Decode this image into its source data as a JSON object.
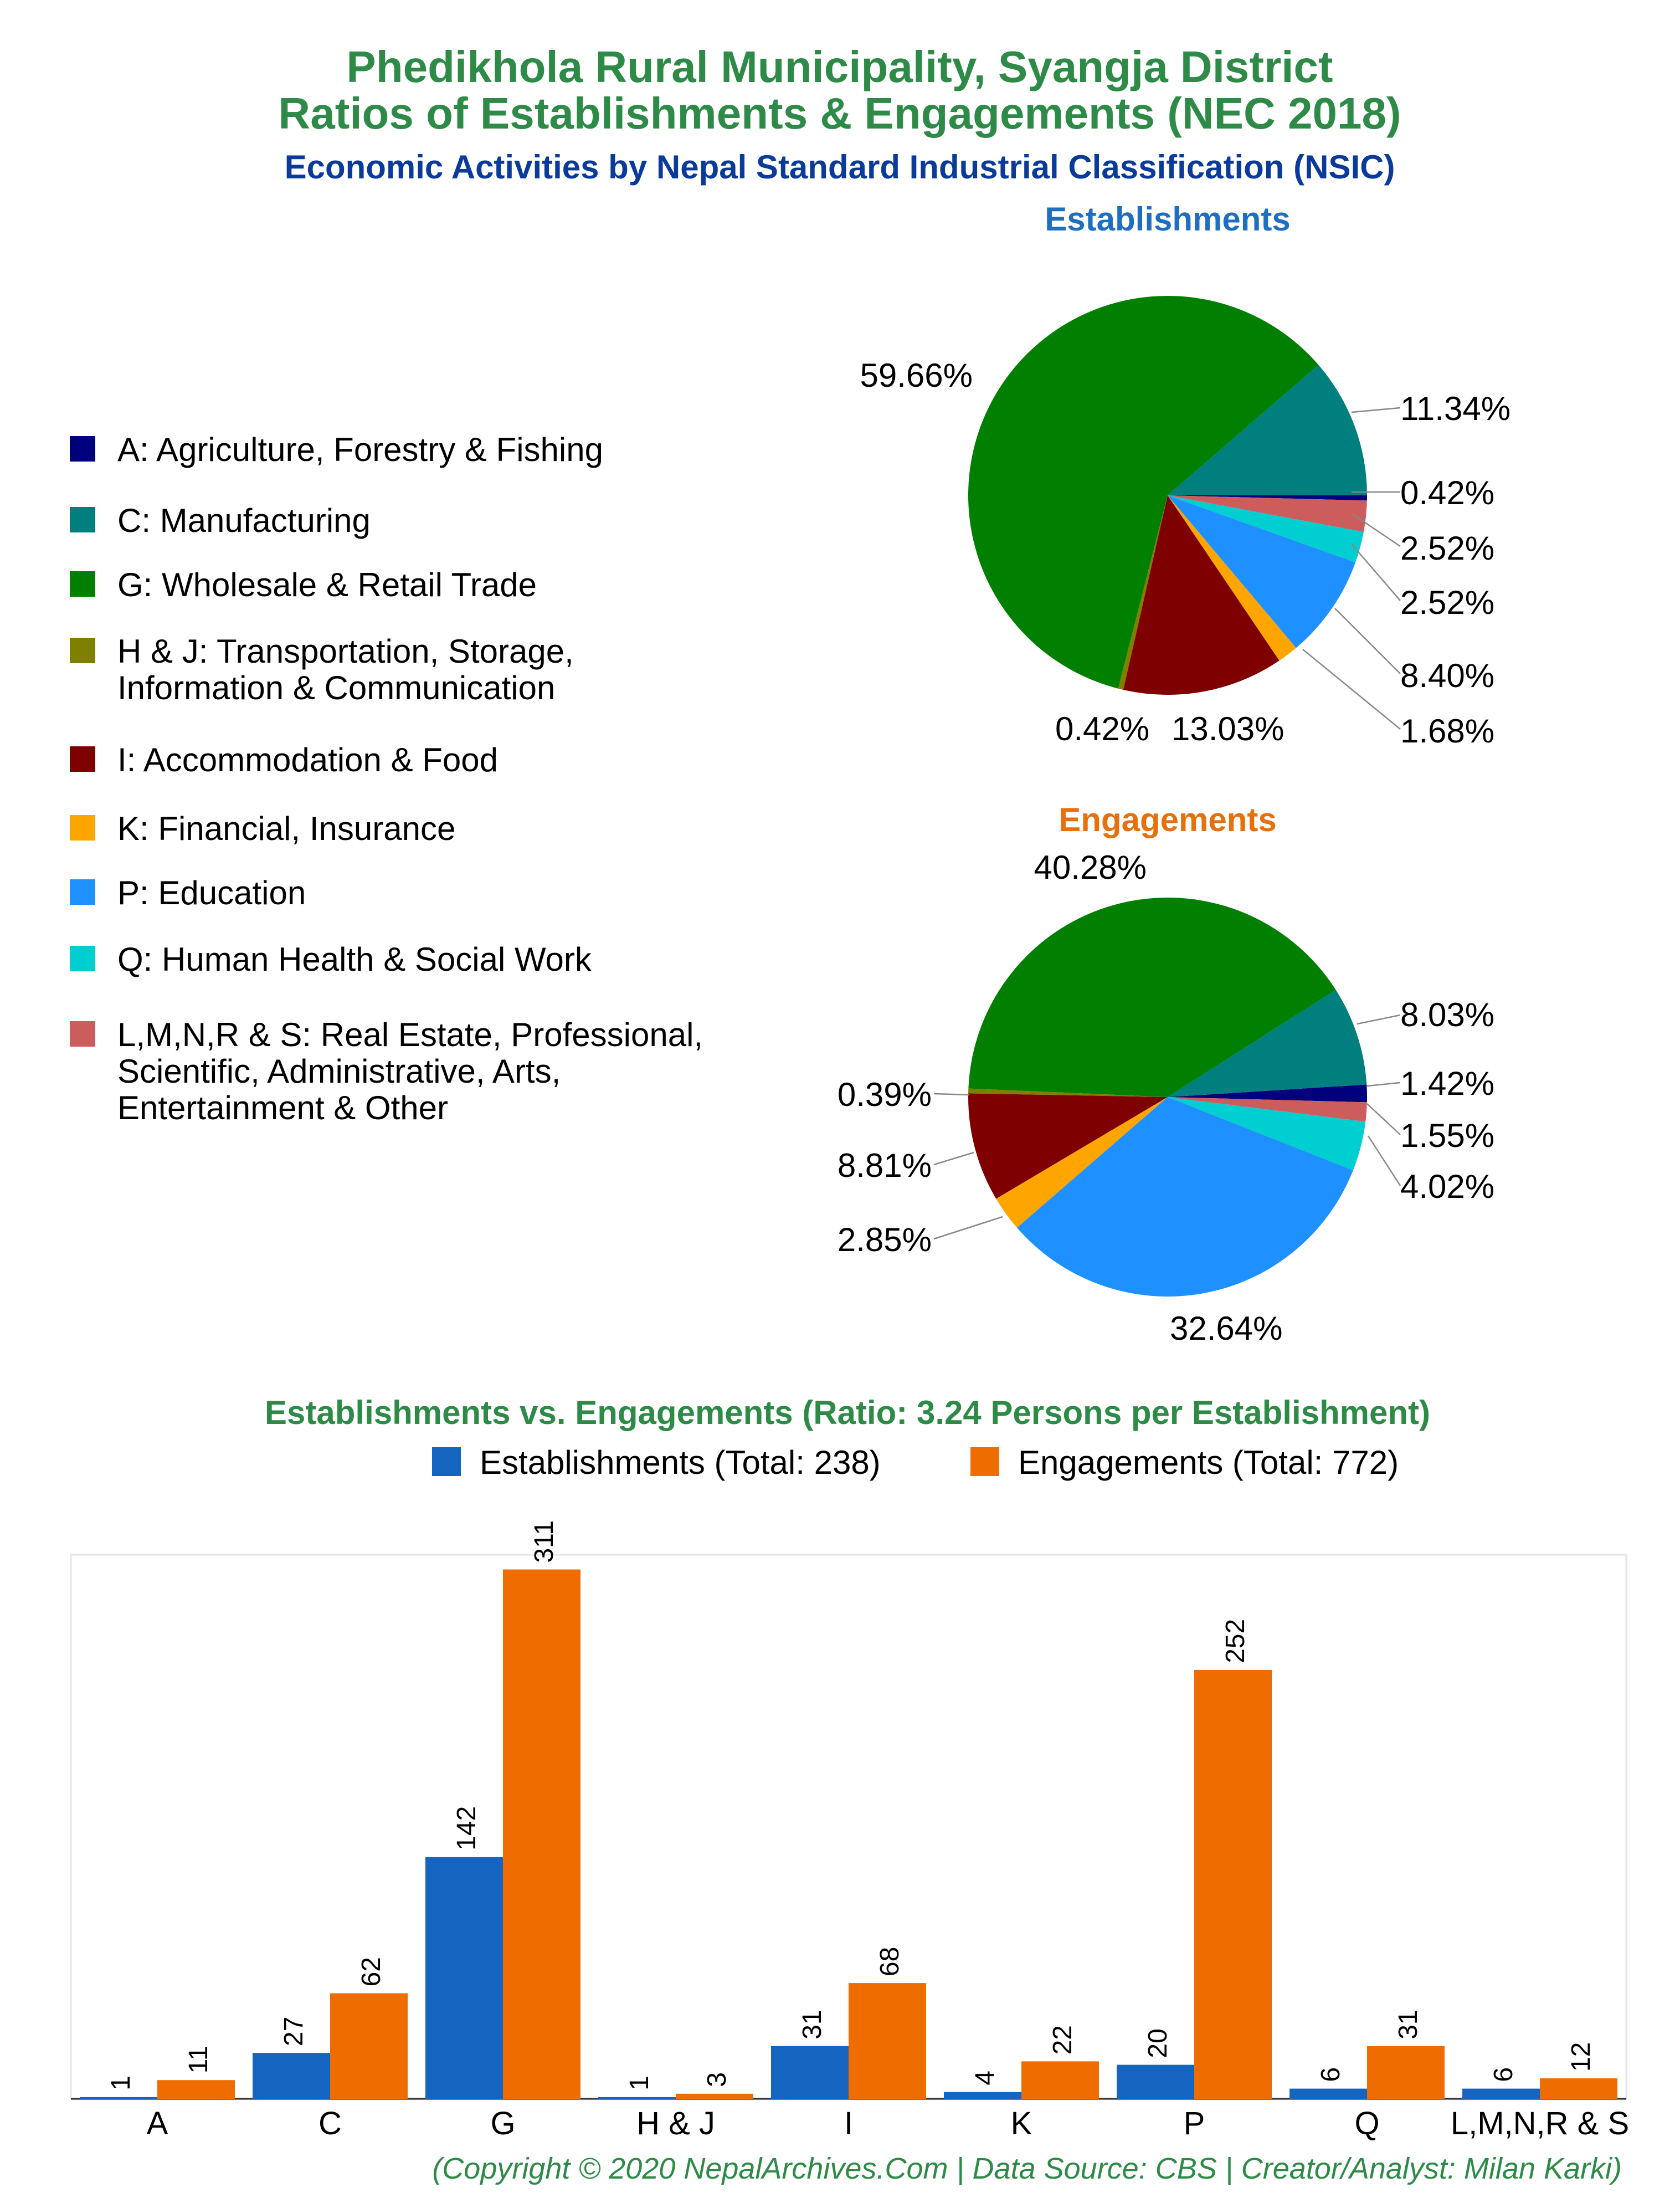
{
  "header": {
    "title_line1": "Phedikhola Rural Municipality, Syangja District",
    "title_line2": "Ratios of Establishments & Engagements (NEC 2018)",
    "subtitle": "Economic Activities by Nepal Standard Industrial Classification (NSIC)"
  },
  "legend": {
    "items": [
      {
        "lines": [
          "A: Agriculture, Forestry & Fishing"
        ],
        "color": "#00007f"
      },
      {
        "lines": [
          "C: Manufacturing"
        ],
        "color": "#007f7f"
      },
      {
        "lines": [
          "G: Wholesale & Retail Trade"
        ],
        "color": "#007f00"
      },
      {
        "lines": [
          "H & J: Transportation, Storage,",
          "Information & Communication"
        ],
        "color": "#7f7f00"
      },
      {
        "lines": [
          "I: Accommodation & Food"
        ],
        "color": "#7f0000"
      },
      {
        "lines": [
          "K: Financial, Insurance"
        ],
        "color": "#ffa500"
      },
      {
        "lines": [
          "P: Education"
        ],
        "color": "#1e90ff"
      },
      {
        "lines": [
          "Q: Human Health & Social Work"
        ],
        "color": "#00ced1"
      },
      {
        "lines": [
          "L,M,N,R & S: Real Estate, Professional,",
          "Scientific, Administrative, Arts,",
          "Entertainment & Other"
        ],
        "color": "#cd5c5c"
      }
    ]
  },
  "colors": {
    "title": "#2e8b47",
    "subtitle": "#0a3a9a",
    "establishments_title": "#1e6fbf",
    "engagements_title": "#e8700a",
    "bar_establishments": "#1565c0",
    "bar_engagements": "#ef6c00",
    "footer": "#2e8b47"
  },
  "chart_data": [
    {
      "type": "pie",
      "title": "Establishments",
      "categories": [
        "A",
        "C",
        "G",
        "H & J",
        "I",
        "K",
        "P",
        "Q",
        "L,M,N,R & S"
      ],
      "values": [
        0.42,
        11.34,
        59.66,
        0.42,
        13.03,
        1.68,
        8.4,
        2.52,
        2.52
      ],
      "labels": [
        "0.42%",
        "11.34%",
        "59.66%",
        "0.42%",
        "13.03%",
        "1.68%",
        "8.40%",
        "2.52%",
        "2.52%"
      ]
    },
    {
      "type": "pie",
      "title": "Engagements",
      "categories": [
        "A",
        "C",
        "G",
        "H & J",
        "I",
        "K",
        "P",
        "Q",
        "L,M,N,R & S"
      ],
      "values": [
        1.42,
        8.03,
        40.28,
        0.39,
        8.81,
        2.85,
        32.64,
        4.02,
        1.55
      ],
      "labels": [
        "1.42%",
        "8.03%",
        "40.28%",
        "0.39%",
        "8.81%",
        "2.85%",
        "32.64%",
        "4.02%",
        "1.55%"
      ]
    },
    {
      "type": "bar",
      "title": "Establishments vs. Engagements (Ratio: 3.24 Persons per Establishment)",
      "categories": [
        "A",
        "C",
        "G",
        "H & J",
        "I",
        "K",
        "P",
        "Q",
        "L,M,N,R & S"
      ],
      "series": [
        {
          "name": "Establishments (Total: 238)",
          "values": [
            1,
            27,
            142,
            1,
            31,
            4,
            20,
            6,
            6
          ]
        },
        {
          "name": "Engagements (Total: 772)",
          "values": [
            11,
            62,
            311,
            3,
            68,
            22,
            252,
            31,
            12
          ]
        }
      ],
      "ylim": [
        0,
        320
      ],
      "grid": false,
      "legend": "top"
    }
  ],
  "footer": "(Copyright © 2020 NepalArchives.Com | Data Source: CBS | Creator/Analyst: Milan Karki)"
}
